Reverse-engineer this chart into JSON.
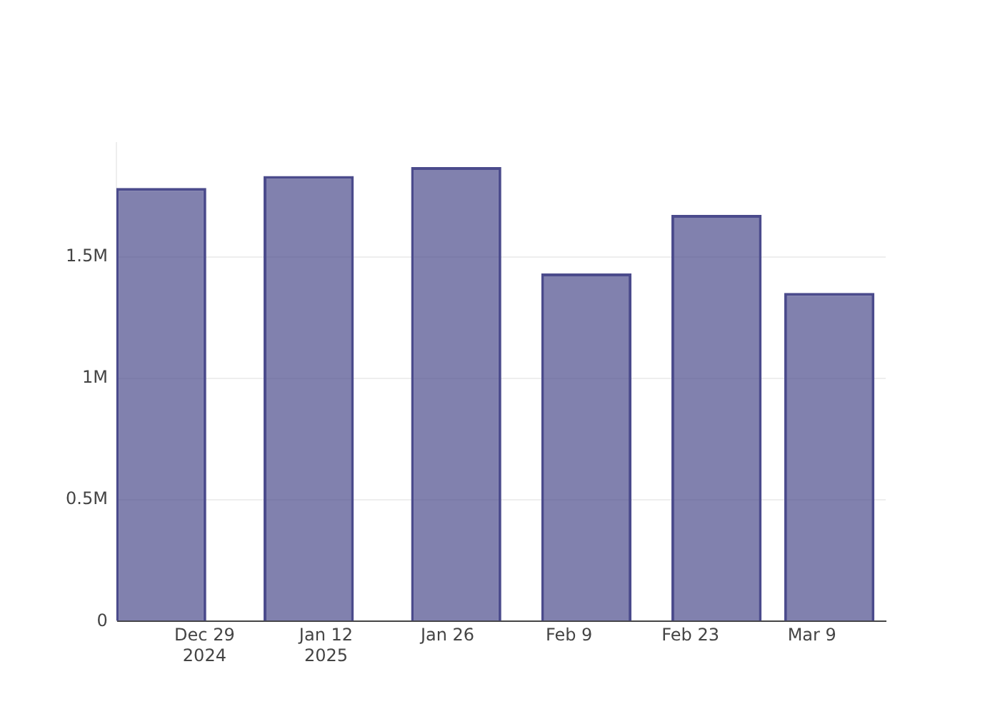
{
  "chart_data": {
    "type": "bar",
    "x": [
      "2024-12-24",
      "2025-01-10",
      "2025-01-27",
      "2025-02-11",
      "2025-02-26",
      "2025-03-11"
    ],
    "values": [
      1784000,
      1833000,
      1870000,
      1432000,
      1673000,
      1352000
    ],
    "color": "#4b4b8c",
    "xlim": [
      "2024-12-18T20:00",
      "2025-03-17T12:00"
    ],
    "xticks": [
      {
        "value": "2024-12-29",
        "label": "Dec 29\n2024"
      },
      {
        "value": "2025-01-12",
        "label": "Jan 12\n2025"
      },
      {
        "value": "2025-01-26",
        "label": "Jan 26"
      },
      {
        "value": "2025-02-09",
        "label": "Feb 9"
      },
      {
        "value": "2025-02-23",
        "label": "Feb 23"
      },
      {
        "value": "2025-03-09",
        "label": "Mar 9"
      }
    ],
    "ylim": [
      0,
      1970000
    ],
    "yticks": [
      0,
      {
        "value": 500000,
        "label": "0.5M"
      },
      {
        "value": 1000000,
        "label": "1M"
      },
      {
        "value": 1500000,
        "label": "1.5M"
      }
    ],
    "grid": "y",
    "legend": false
  }
}
